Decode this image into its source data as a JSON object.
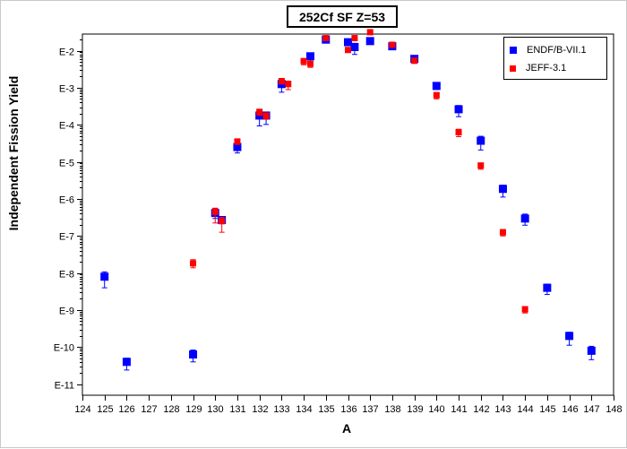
{
  "chart_data": {
    "type": "scatter",
    "title": "252Cf SF Z=53",
    "xlabel": "A",
    "ylabel": "Independent Fission Yield",
    "y_scale": "log",
    "xlim": [
      124,
      148
    ],
    "ylim_log10": [
      -11.3,
      -1.55
    ],
    "x_ticks": [
      "124",
      "125",
      "126",
      "127",
      "128",
      "129",
      "130",
      "131",
      "132",
      "133",
      "134",
      "135",
      "136",
      "137",
      "138",
      "139",
      "140",
      "141",
      "142",
      "143",
      "144",
      "145",
      "146",
      "147",
      "148"
    ],
    "y_ticks": [
      {
        "label": "E-2",
        "log10": -2
      },
      {
        "label": "E-3",
        "log10": -3
      },
      {
        "label": "E-4",
        "log10": -4
      },
      {
        "label": "E-5",
        "log10": -5
      },
      {
        "label": "E-6",
        "log10": -6
      },
      {
        "label": "E-7",
        "log10": -7
      },
      {
        "label": "E-8",
        "log10": -8
      },
      {
        "label": "E-9",
        "log10": -9
      },
      {
        "label": "E-10",
        "log10": -10
      },
      {
        "label": "E-11",
        "log10": -11
      }
    ],
    "legend_position": "top-right",
    "series": [
      {
        "name": "ENDF/B-VII.1",
        "color": "#0000ff",
        "marker": "square",
        "points": [
          {
            "x": 125,
            "log10y": -8.1,
            "err_lo": 0.3,
            "err_hi": 0.13
          },
          {
            "x": 126,
            "log10y": -10.4,
            "err_lo": 0.22,
            "err_hi": 0.1
          },
          {
            "x": 129,
            "log10y": -10.2,
            "err_lo": 0.2,
            "err_hi": 0.12
          },
          {
            "x": 130,
            "log10y": -6.38,
            "err_lo": 0.15,
            "err_hi": 0.12
          },
          {
            "x": 130.3,
            "log10y": -6.57,
            "err_lo": 0.1,
            "err_hi": 0.07
          },
          {
            "x": 131,
            "log10y": -4.6,
            "err_lo": 0.16,
            "err_hi": 0.1
          },
          {
            "x": 132,
            "log10y": -3.75,
            "err_lo": 0.28,
            "err_hi": 0.07
          },
          {
            "x": 132.3,
            "log10y": -3.75,
            "err_lo": 0.24,
            "err_hi": 0.07
          },
          {
            "x": 133,
            "log10y": -2.9,
            "err_lo": 0.22,
            "err_hi": 0.08
          },
          {
            "x": 134.3,
            "log10y": -2.15,
            "err_lo": 0.15,
            "err_hi": 0.07
          },
          {
            "x": 135,
            "log10y": -1.7,
            "err_lo": 0.05,
            "err_hi": 0.04
          },
          {
            "x": 136,
            "log10y": -1.77,
            "err_lo": 0.06,
            "err_hi": 0.04
          },
          {
            "x": 136.3,
            "log10y": -1.9,
            "err_lo": 0.2,
            "err_hi": 0.1
          },
          {
            "x": 137,
            "log10y": -1.74,
            "err_lo": 0.08,
            "err_hi": 0.04
          },
          {
            "x": 138,
            "log10y": -1.88,
            "err_lo": 0.05,
            "err_hi": 0.04
          },
          {
            "x": 139,
            "log10y": -2.22,
            "err_lo": 0.08,
            "err_hi": 0.06
          },
          {
            "x": 140,
            "log10y": -2.95,
            "err_lo": 0.1,
            "err_hi": 0.08
          },
          {
            "x": 141,
            "log10y": -3.58,
            "err_lo": 0.2,
            "err_hi": 0.1
          },
          {
            "x": 142,
            "log10y": -4.43,
            "err_lo": 0.25,
            "err_hi": 0.12
          },
          {
            "x": 143,
            "log10y": -5.73,
            "err_lo": 0.22,
            "err_hi": 0.1
          },
          {
            "x": 144,
            "log10y": -6.53,
            "err_lo": 0.18,
            "err_hi": 0.12
          },
          {
            "x": 145,
            "log10y": -8.4,
            "err_lo": 0.18,
            "err_hi": 0.1
          },
          {
            "x": 146,
            "log10y": -9.7,
            "err_lo": 0.25,
            "err_hi": 0.1
          },
          {
            "x": 147,
            "log10y": -10.1,
            "err_lo": 0.24,
            "err_hi": 0.12
          }
        ]
      },
      {
        "name": "JEFF-3.1",
        "color": "#ff0000",
        "marker": "square",
        "points": [
          {
            "x": 129,
            "log10y": -7.74,
            "err_lo": 0.12,
            "err_hi": 0.1
          },
          {
            "x": 130,
            "log10y": -6.35,
            "err_lo": 0.3,
            "err_hi": 0.1
          },
          {
            "x": 130.3,
            "log10y": -6.6,
            "err_lo": 0.3,
            "err_hi": 0.1
          },
          {
            "x": 131,
            "log10y": -4.45,
            "err_lo": 0.08,
            "err_hi": 0.06
          },
          {
            "x": 132,
            "log10y": -3.65,
            "err_lo": 0.1,
            "err_hi": 0.06
          },
          {
            "x": 132.3,
            "log10y": -3.75,
            "err_lo": 0.1,
            "err_hi": 0.06
          },
          {
            "x": 133,
            "log10y": -2.82,
            "err_lo": 0.08,
            "err_hi": 0.06
          },
          {
            "x": 133.3,
            "log10y": -2.9,
            "err_lo": 0.15,
            "err_hi": 0.08
          },
          {
            "x": 134,
            "log10y": -2.28,
            "err_lo": 0.1,
            "err_hi": 0.06
          },
          {
            "x": 134.3,
            "log10y": -2.35,
            "err_lo": 0.1,
            "err_hi": 0.06
          },
          {
            "x": 135,
            "log10y": -1.66,
            "err_lo": 0.05,
            "err_hi": 0.04
          },
          {
            "x": 136,
            "log10y": -1.98,
            "err_lo": 0.06,
            "err_hi": 0.04
          },
          {
            "x": 136.3,
            "log10y": -1.66,
            "err_lo": 0.05,
            "err_hi": 0.04
          },
          {
            "x": 137,
            "log10y": -1.5,
            "err_lo": 0.04,
            "err_hi": 0.03
          },
          {
            "x": 138,
            "log10y": -1.84,
            "err_lo": 0.05,
            "err_hi": 0.04
          },
          {
            "x": 139,
            "log10y": -2.27,
            "err_lo": 0.07,
            "err_hi": 0.05
          },
          {
            "x": 140,
            "log10y": -3.2,
            "err_lo": 0.1,
            "err_hi": 0.07
          },
          {
            "x": 141,
            "log10y": -4.2,
            "err_lo": 0.12,
            "err_hi": 0.08
          },
          {
            "x": 142,
            "log10y": -5.1,
            "err_lo": 0.1,
            "err_hi": 0.07
          },
          {
            "x": 143,
            "log10y": -6.9,
            "err_lo": 0.1,
            "err_hi": 0.07
          },
          {
            "x": 144,
            "log10y": -8.98,
            "err_lo": 0.1,
            "err_hi": 0.07
          }
        ]
      }
    ]
  }
}
